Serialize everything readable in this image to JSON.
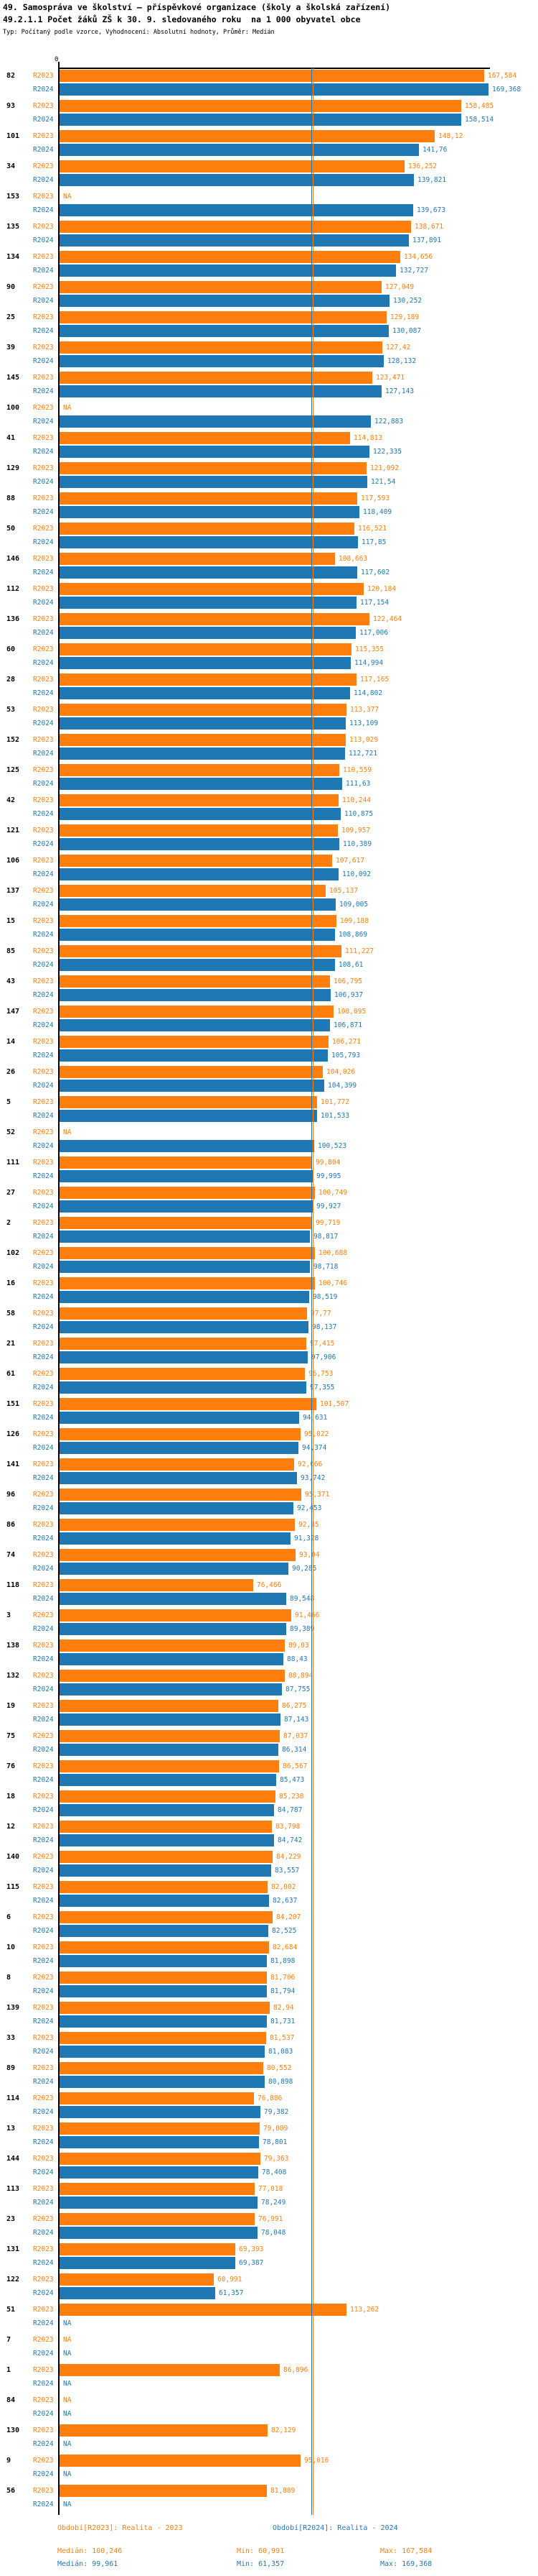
{
  "title": {
    "line1": "49. Samospráva ve školství – příspěvkové organizace (školy a školská zařízení)",
    "line2": "49.2.1.1 Počet žáků ZŠ k 30. 9. sledovaného roku  na 1 000 obyvatel obce",
    "line3": "Typ: Počítaný podle vzorce, Vyhodnocení: Absolutní hodnoty, Průměr: Medián"
  },
  "axis": {
    "zero_tick": "0"
  },
  "chart_data": {
    "type": "bar",
    "orientation": "horizontal",
    "series_names": [
      "R2023",
      "R2024"
    ],
    "colors": {
      "R2023": "#ff7f0e",
      "R2024": "#1f77b4"
    },
    "xlim": [
      0,
      170
    ],
    "na_label": "NA",
    "medians": {
      "R2023": "100,246",
      "R2024": "99,961"
    },
    "rows": [
      {
        "id": "82",
        "R2023": "167,584",
        "R2024": "169,368"
      },
      {
        "id": "93",
        "R2023": "158,485",
        "R2024": "158,514"
      },
      {
        "id": "101",
        "R2023": "148,12",
        "R2024": "141,76"
      },
      {
        "id": "34",
        "R2023": "136,252",
        "R2024": "139,821"
      },
      {
        "id": "153",
        "R2023": "NA",
        "R2024": "139,673"
      },
      {
        "id": "135",
        "R2023": "138,671",
        "R2024": "137,891"
      },
      {
        "id": "134",
        "R2023": "134,656",
        "R2024": "132,727"
      },
      {
        "id": "90",
        "R2023": "127,049",
        "R2024": "130,252"
      },
      {
        "id": "25",
        "R2023": "129,189",
        "R2024": "130,087"
      },
      {
        "id": "39",
        "R2023": "127,42",
        "R2024": "128,132"
      },
      {
        "id": "145",
        "R2023": "123,471",
        "R2024": "127,143"
      },
      {
        "id": "100",
        "R2023": "NA",
        "R2024": "122,883"
      },
      {
        "id": "41",
        "R2023": "114,813",
        "R2024": "122,335"
      },
      {
        "id": "129",
        "R2023": "121,092",
        "R2024": "121,54"
      },
      {
        "id": "88",
        "R2023": "117,593",
        "R2024": "118,409"
      },
      {
        "id": "50",
        "R2023": "116,521",
        "R2024": "117,85"
      },
      {
        "id": "146",
        "R2023": "108,663",
        "R2024": "117,602"
      },
      {
        "id": "112",
        "R2023": "120,184",
        "R2024": "117,154"
      },
      {
        "id": "136",
        "R2023": "122,464",
        "R2024": "117,006"
      },
      {
        "id": "60",
        "R2023": "115,355",
        "R2024": "114,994"
      },
      {
        "id": "28",
        "R2023": "117,165",
        "R2024": "114,802"
      },
      {
        "id": "53",
        "R2023": "113,377",
        "R2024": "113,109"
      },
      {
        "id": "152",
        "R2023": "113,029",
        "R2024": "112,721"
      },
      {
        "id": "125",
        "R2023": "110,559",
        "R2024": "111,63"
      },
      {
        "id": "42",
        "R2023": "110,244",
        "R2024": "110,875"
      },
      {
        "id": "121",
        "R2023": "109,957",
        "R2024": "110,389"
      },
      {
        "id": "106",
        "R2023": "107,617",
        "R2024": "110,092"
      },
      {
        "id": "137",
        "R2023": "105,137",
        "R2024": "109,005"
      },
      {
        "id": "15",
        "R2023": "109,188",
        "R2024": "108,869"
      },
      {
        "id": "85",
        "R2023": "111,227",
        "R2024": "108,61"
      },
      {
        "id": "43",
        "R2023": "106,795",
        "R2024": "106,937"
      },
      {
        "id": "147",
        "R2023": "108,095",
        "R2024": "106,871"
      },
      {
        "id": "14",
        "R2023": "106,271",
        "R2024": "105,793"
      },
      {
        "id": "26",
        "R2023": "104,026",
        "R2024": "104,399"
      },
      {
        "id": "5",
        "R2023": "101,772",
        "R2024": "101,533"
      },
      {
        "id": "52",
        "R2023": "NA",
        "R2024": "100,523"
      },
      {
        "id": "111",
        "R2023": "99,804",
        "R2024": "99,995"
      },
      {
        "id": "27",
        "R2023": "100,749",
        "R2024": "99,927"
      },
      {
        "id": "2",
        "R2023": "99,719",
        "R2024": "98,817"
      },
      {
        "id": "102",
        "R2023": "100,688",
        "R2024": "98,718"
      },
      {
        "id": "16",
        "R2023": "100,746",
        "R2024": "98,519"
      },
      {
        "id": "58",
        "R2023": "97,77",
        "R2024": "98,137"
      },
      {
        "id": "21",
        "R2023": "97,415",
        "R2024": "97,906"
      },
      {
        "id": "61",
        "R2023": "96,753",
        "R2024": "97,355"
      },
      {
        "id": "151",
        "R2023": "101,507",
        "R2024": "94,631"
      },
      {
        "id": "126",
        "R2023": "95,022",
        "R2024": "94,374"
      },
      {
        "id": "141",
        "R2023": "92,666",
        "R2024": "93,742"
      },
      {
        "id": "96",
        "R2023": "95,371",
        "R2024": "92,453"
      },
      {
        "id": "86",
        "R2023": "92,85",
        "R2024": "91,328"
      },
      {
        "id": "74",
        "R2023": "93,04",
        "R2024": "90,285"
      },
      {
        "id": "118",
        "R2023": "76,466",
        "R2024": "89,548"
      },
      {
        "id": "3",
        "R2023": "91,466",
        "R2024": "89,389"
      },
      {
        "id": "138",
        "R2023": "89,03",
        "R2024": "88,43"
      },
      {
        "id": "132",
        "R2023": "88,894",
        "R2024": "87,755"
      },
      {
        "id": "19",
        "R2023": "86,275",
        "R2024": "87,143"
      },
      {
        "id": "75",
        "R2023": "87,037",
        "R2024": "86,314"
      },
      {
        "id": "76",
        "R2023": "86,567",
        "R2024": "85,473"
      },
      {
        "id": "18",
        "R2023": "85,238",
        "R2024": "84,787"
      },
      {
        "id": "12",
        "R2023": "83,798",
        "R2024": "84,742"
      },
      {
        "id": "140",
        "R2023": "84,229",
        "R2024": "83,557"
      },
      {
        "id": "115",
        "R2023": "82,002",
        "R2024": "82,637"
      },
      {
        "id": "6",
        "R2023": "84,207",
        "R2024": "82,525"
      },
      {
        "id": "10",
        "R2023": "82,684",
        "R2024": "81,898"
      },
      {
        "id": "8",
        "R2023": "81,706",
        "R2024": "81,794"
      },
      {
        "id": "139",
        "R2023": "82,94",
        "R2024": "81,731"
      },
      {
        "id": "33",
        "R2023": "81,537",
        "R2024": "81,083"
      },
      {
        "id": "89",
        "R2023": "80,552",
        "R2024": "80,898"
      },
      {
        "id": "114",
        "R2023": "76,886",
        "R2024": "79,382"
      },
      {
        "id": "13",
        "R2023": "79,009",
        "R2024": "78,801"
      },
      {
        "id": "144",
        "R2023": "79,363",
        "R2024": "78,408"
      },
      {
        "id": "113",
        "R2023": "77,018",
        "R2024": "78,249"
      },
      {
        "id": "23",
        "R2023": "76,991",
        "R2024": "78,048"
      },
      {
        "id": "131",
        "R2023": "69,393",
        "R2024": "69,387"
      },
      {
        "id": "122",
        "R2023": "60,991",
        "R2024": "61,357"
      },
      {
        "id": "51",
        "R2023": "113,262",
        "R2024": "NA"
      },
      {
        "id": "7",
        "R2023": "NA",
        "R2024": "NA"
      },
      {
        "id": "1",
        "R2023": "86,896",
        "R2024": "NA"
      },
      {
        "id": "84",
        "R2023": "NA",
        "R2024": "NA"
      },
      {
        "id": "130",
        "R2023": "82,129",
        "R2024": "NA"
      },
      {
        "id": "9",
        "R2023": "95,016",
        "R2024": "NA"
      },
      {
        "id": "56",
        "R2023": "81,889",
        "R2024": "NA"
      }
    ]
  },
  "footer": {
    "period_2023": "Období[R2023]: Realita - 2023",
    "period_2024": "Období[R2024]: Realita - 2024",
    "median_2023": "Medián: 100,246",
    "min_2023": "Min: 60,991",
    "max_2023": "Max: 167,584",
    "median_2024": "Medián: 99,961",
    "min_2024": "Min: 61,357",
    "max_2024": "Max: 169,368"
  }
}
